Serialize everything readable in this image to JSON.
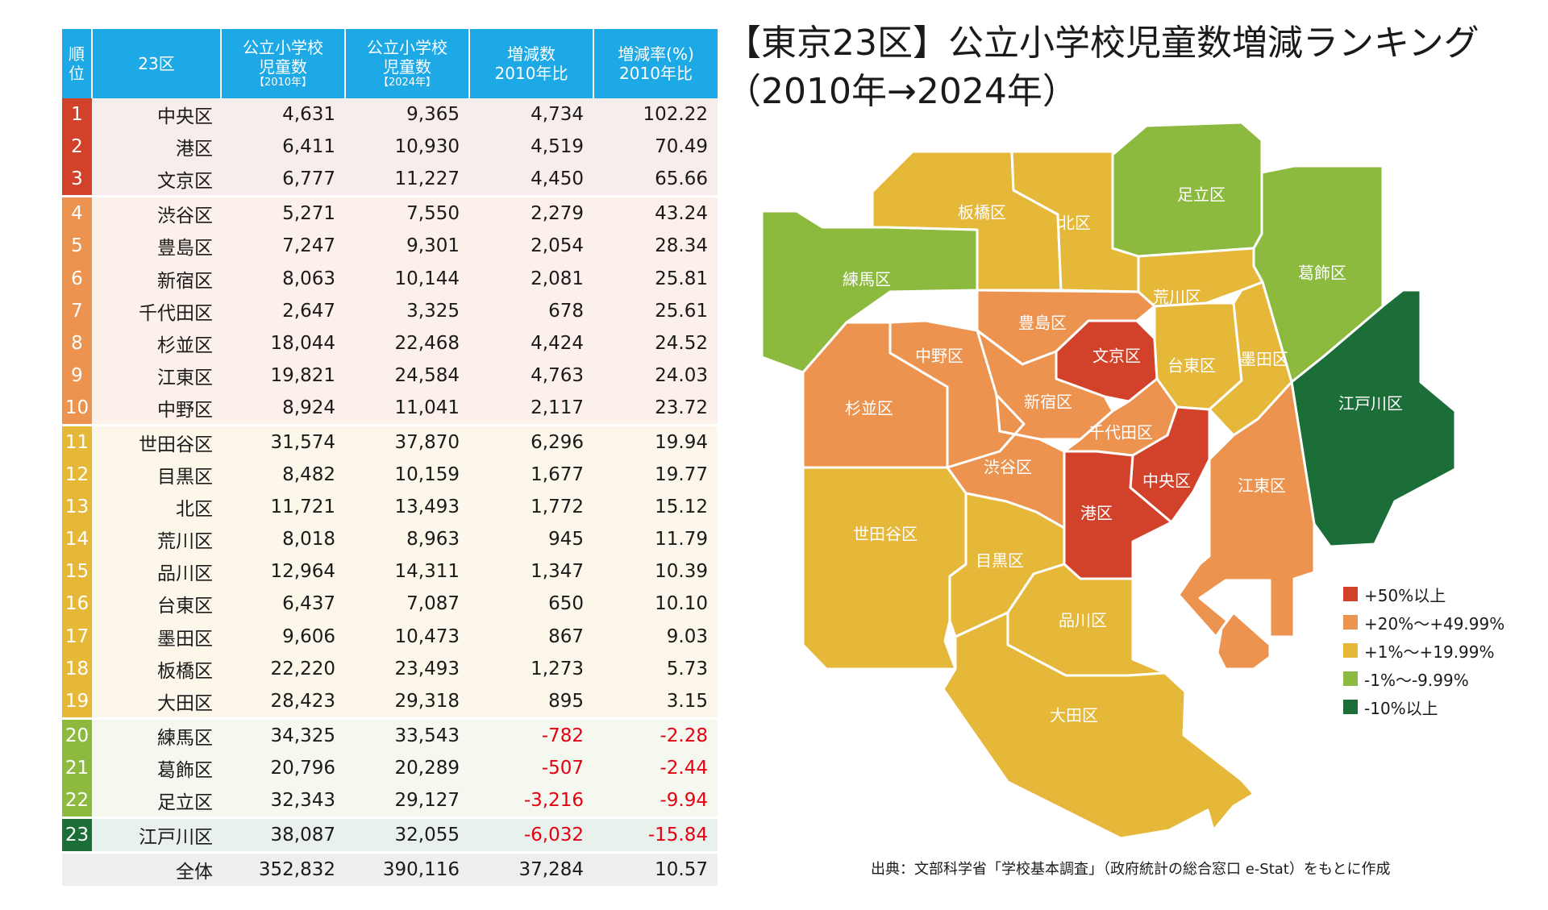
{
  "title": {
    "line1": "【東京23区】公立小学校児童数増減ランキング",
    "line2": "（2010年→2024年）"
  },
  "table": {
    "headers": {
      "rank": [
        "順",
        "位"
      ],
      "ward": "23区",
      "c2010": [
        "公立小学校",
        "児童数",
        "【2010年】"
      ],
      "c2024": [
        "公立小学校",
        "児童数",
        "【2024年】"
      ],
      "diff": [
        "増減数",
        "2010年比"
      ],
      "rate": [
        "増減率(%)",
        "2010年比"
      ]
    },
    "rows": [
      {
        "rank": "1",
        "ward": "中央区",
        "c2010": "4,631",
        "c2024": "9,365",
        "diff": "4,734",
        "rate": "102.22"
      },
      {
        "rank": "2",
        "ward": "港区",
        "c2010": "6,411",
        "c2024": "10,930",
        "diff": "4,519",
        "rate": "70.49"
      },
      {
        "rank": "3",
        "ward": "文京区",
        "c2010": "6,777",
        "c2024": "11,227",
        "diff": "4,450",
        "rate": "65.66"
      },
      {
        "rank": "4",
        "ward": "渋谷区",
        "c2010": "5,271",
        "c2024": "7,550",
        "diff": "2,279",
        "rate": "43.24"
      },
      {
        "rank": "5",
        "ward": "豊島区",
        "c2010": "7,247",
        "c2024": "9,301",
        "diff": "2,054",
        "rate": "28.34"
      },
      {
        "rank": "6",
        "ward": "新宿区",
        "c2010": "8,063",
        "c2024": "10,144",
        "diff": "2,081",
        "rate": "25.81"
      },
      {
        "rank": "7",
        "ward": "千代田区",
        "c2010": "2,647",
        "c2024": "3,325",
        "diff": "678",
        "rate": "25.61"
      },
      {
        "rank": "8",
        "ward": "杉並区",
        "c2010": "18,044",
        "c2024": "22,468",
        "diff": "4,424",
        "rate": "24.52"
      },
      {
        "rank": "9",
        "ward": "江東区",
        "c2010": "19,821",
        "c2024": "24,584",
        "diff": "4,763",
        "rate": "24.03"
      },
      {
        "rank": "10",
        "ward": "中野区",
        "c2010": "8,924",
        "c2024": "11,041",
        "diff": "2,117",
        "rate": "23.72"
      },
      {
        "rank": "11",
        "ward": "世田谷区",
        "c2010": "31,574",
        "c2024": "37,870",
        "diff": "6,296",
        "rate": "19.94"
      },
      {
        "rank": "12",
        "ward": "目黒区",
        "c2010": "8,482",
        "c2024": "10,159",
        "diff": "1,677",
        "rate": "19.77"
      },
      {
        "rank": "13",
        "ward": "北区",
        "c2010": "11,721",
        "c2024": "13,493",
        "diff": "1,772",
        "rate": "15.12"
      },
      {
        "rank": "14",
        "ward": "荒川区",
        "c2010": "8,018",
        "c2024": "8,963",
        "diff": "945",
        "rate": "11.79"
      },
      {
        "rank": "15",
        "ward": "品川区",
        "c2010": "12,964",
        "c2024": "14,311",
        "diff": "1,347",
        "rate": "10.39"
      },
      {
        "rank": "16",
        "ward": "台東区",
        "c2010": "6,437",
        "c2024": "7,087",
        "diff": "650",
        "rate": "10.10"
      },
      {
        "rank": "17",
        "ward": "墨田区",
        "c2010": "9,606",
        "c2024": "10,473",
        "diff": "867",
        "rate": "9.03"
      },
      {
        "rank": "18",
        "ward": "板橋区",
        "c2010": "22,220",
        "c2024": "23,493",
        "diff": "1,273",
        "rate": "5.73"
      },
      {
        "rank": "19",
        "ward": "大田区",
        "c2010": "28,423",
        "c2024": "29,318",
        "diff": "895",
        "rate": "3.15"
      },
      {
        "rank": "20",
        "ward": "練馬区",
        "c2010": "34,325",
        "c2024": "33,543",
        "diff": "-782",
        "rate": "-2.28"
      },
      {
        "rank": "21",
        "ward": "葛飾区",
        "c2010": "20,796",
        "c2024": "20,289",
        "diff": "-507",
        "rate": "-2.44"
      },
      {
        "rank": "22",
        "ward": "足立区",
        "c2010": "32,343",
        "c2024": "29,127",
        "diff": "-3,216",
        "rate": "-9.94"
      },
      {
        "rank": "23",
        "ward": "江戸川区",
        "c2010": "38,087",
        "c2024": "32,055",
        "diff": "-6,032",
        "rate": "-15.84"
      }
    ],
    "total": {
      "label": "全体",
      "c2010": "352,832",
      "c2024": "390,116",
      "diff": "37,284",
      "rate": "10.57"
    }
  },
  "map": {
    "colors": {
      "g1": "#d2422a",
      "g2": "#ec9350",
      "g3": "#e6b83a",
      "g4": "#8cba3e",
      "g5": "#1b6e38"
    },
    "ward_labels": {
      "nerima": "練馬区",
      "itabashi": "板橋区",
      "kita": "北区",
      "adachi": "足立区",
      "katsushika": "葛飾区",
      "edogawa": "江戸川区",
      "arakawa": "荒川区",
      "toshima": "豊島区",
      "bunkyo": "文京区",
      "taito": "台東区",
      "sumida": "墨田区",
      "nakano": "中野区",
      "suginami": "杉並区",
      "shinjuku": "新宿区",
      "chiyoda": "千代田区",
      "chuo": "中央区",
      "koto": "江東区",
      "shibuya": "渋谷区",
      "minato": "港区",
      "setagaya": "世田谷区",
      "meguro": "目黒区",
      "shinagawa": "品川区",
      "ota": "大田区"
    }
  },
  "legend": [
    {
      "label": "+50%以上",
      "color": "#d2422a"
    },
    {
      "label": "+20%～+49.99%",
      "color": "#ec9350"
    },
    {
      "label": "+1%～+19.99%",
      "color": "#e6b83a"
    },
    {
      "label": "-1%～-9.99%",
      "color": "#8cba3e"
    },
    {
      "label": "-10%以上",
      "color": "#1b6e38"
    }
  ],
  "source": "出典：文部科学省「学校基本調査」（政府統計の総合窓口 e-Stat）をもとに作成"
}
